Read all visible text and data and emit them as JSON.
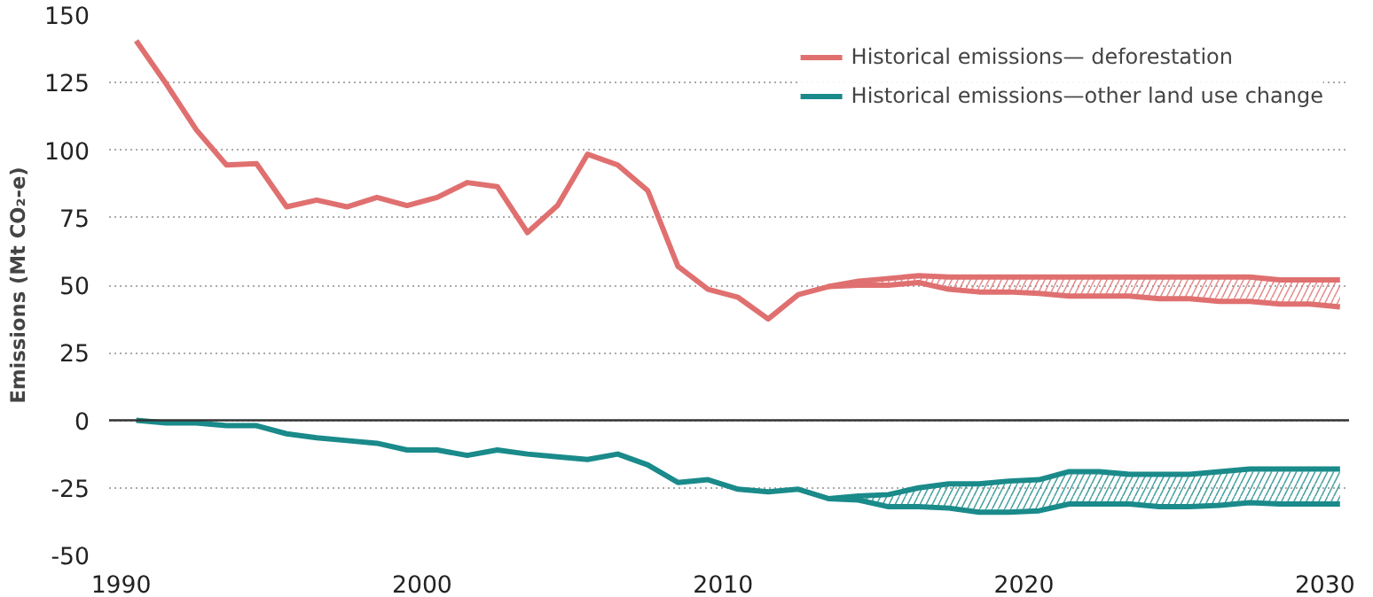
{
  "chart_data": {
    "type": "line",
    "ylabel": "Emissions (Mt CO₂-e)",
    "xlim": [
      1989.6,
      2030.8
    ],
    "ylim": [
      -50,
      150
    ],
    "xticks": [
      1990,
      2000,
      2010,
      2020,
      2030
    ],
    "yticks": [
      -50,
      -25,
      0,
      25,
      50,
      75,
      100,
      125,
      150
    ],
    "grid": "y",
    "legend": "top right",
    "line_style": "solid",
    "marker": "none",
    "ref_lines": [
      {
        "axis": "y",
        "value": 0,
        "color": "#333333"
      }
    ],
    "series": [
      {
        "name": "Historical emissions— deforestation",
        "color": "#e07070",
        "x": [
          1990.5,
          1991.5,
          1992.5,
          1993.5,
          1994.5,
          1995.5,
          1996.5,
          1997.5,
          1998.5,
          1999.5,
          2000.5,
          2001.5,
          2002.5,
          2003.5,
          2004.5,
          2005.5,
          2006.5,
          2007.5,
          2008.5,
          2009.5,
          2010.5,
          2011.5,
          2012.5,
          2013.5,
          2014.5,
          2015.5,
          2016.5,
          2017.5,
          2018.5,
          2019.5,
          2020.5,
          2021.5,
          2022.5,
          2023.5,
          2024.5,
          2025.5,
          2026.5,
          2027.5,
          2028.5,
          2029.5,
          2030.5
        ],
        "values": [
          140.5,
          124.5,
          107.5,
          94.5,
          95,
          79,
          81.5,
          79,
          82.5,
          79.5,
          82.5,
          88,
          86.5,
          69.5,
          79.5,
          98.5,
          94.5,
          85,
          57,
          48.5,
          45.5,
          37.5,
          46.5,
          49.5,
          51.5,
          52.5,
          53.5,
          53,
          53,
          53,
          53,
          53,
          53,
          53,
          53,
          53,
          53,
          53,
          52,
          52,
          52
        ],
        "upper": [
          null,
          null,
          null,
          null,
          null,
          null,
          null,
          null,
          null,
          null,
          null,
          null,
          null,
          null,
          null,
          null,
          null,
          null,
          null,
          null,
          null,
          null,
          null,
          49.5,
          51.5,
          52.5,
          53.5,
          53,
          53,
          53,
          53,
          53,
          53,
          53,
          53,
          53,
          53,
          53,
          52,
          52,
          52
        ],
        "lower": [
          null,
          null,
          null,
          null,
          null,
          null,
          null,
          null,
          null,
          null,
          null,
          null,
          null,
          null,
          null,
          null,
          null,
          null,
          null,
          null,
          null,
          null,
          null,
          49.5,
          50,
          50,
          51,
          48.5,
          47.5,
          47.5,
          47,
          46,
          46,
          46,
          45,
          45,
          44,
          44,
          43,
          43,
          42
        ]
      },
      {
        "name": "Historical emissions—other land use change",
        "color": "#1a8a8a",
        "x": [
          1990.5,
          1991.5,
          1992.5,
          1993.5,
          1994.5,
          1995.5,
          1996.5,
          1997.5,
          1998.5,
          1999.5,
          2000.5,
          2001.5,
          2002.5,
          2003.5,
          2004.5,
          2005.5,
          2006.5,
          2007.5,
          2008.5,
          2009.5,
          2010.5,
          2011.5,
          2012.5,
          2013.5,
          2014.5,
          2015.5,
          2016.5,
          2017.5,
          2018.5,
          2019.5,
          2020.5,
          2021.5,
          2022.5,
          2023.5,
          2024.5,
          2025.5,
          2026.5,
          2027.5,
          2028.5,
          2029.5,
          2030.5
        ],
        "values": [
          0,
          -1,
          -1,
          -2,
          -2,
          -5,
          -6.5,
          -7.5,
          -8.5,
          -11,
          -11,
          -13,
          -11,
          -12.5,
          -13.5,
          -14.5,
          -12.5,
          -16.5,
          -23,
          -22,
          -25.5,
          -26.5,
          -25.5,
          -29,
          -28,
          -27.5,
          -25,
          -23.5,
          -23.5,
          -22.5,
          -22,
          -19,
          -19,
          -20,
          -20,
          -20,
          -19,
          -18,
          -18,
          -18,
          -18
        ],
        "upper": [
          null,
          null,
          null,
          null,
          null,
          null,
          null,
          null,
          null,
          null,
          null,
          null,
          null,
          null,
          null,
          null,
          null,
          null,
          null,
          null,
          null,
          null,
          null,
          -29,
          -28,
          -27.5,
          -25,
          -23.5,
          -23.5,
          -22.5,
          -22,
          -19,
          -19,
          -20,
          -20,
          -20,
          -19,
          -18,
          -18,
          -18,
          -18
        ],
        "lower": [
          null,
          null,
          null,
          null,
          null,
          null,
          null,
          null,
          null,
          null,
          null,
          null,
          null,
          null,
          null,
          null,
          null,
          null,
          null,
          null,
          null,
          null,
          null,
          -29,
          -29.5,
          -32,
          -32,
          -32.5,
          -34,
          -34,
          -33.5,
          -31,
          -31,
          -31,
          -32,
          -32,
          -31.5,
          -30.5,
          -31,
          -31,
          -31
        ]
      },
      {
        "color": "#e07070",
        "x": [
          2013.5,
          2014.5,
          2015.5,
          2016.5,
          2017.5,
          2018.5,
          2019.5,
          2020.5,
          2021.5,
          2022.5,
          2023.5,
          2024.5,
          2025.5,
          2026.5,
          2027.5,
          2028.5,
          2029.5,
          2030.5
        ],
        "values": [
          49.5,
          50,
          50,
          51,
          48.5,
          47.5,
          47.5,
          47,
          46,
          46,
          46,
          45,
          45,
          44,
          44,
          43,
          43,
          42
        ]
      },
      {
        "color": "#1a8a8a",
        "x": [
          2013.5,
          2014.5,
          2015.5,
          2016.5,
          2017.5,
          2018.5,
          2019.5,
          2020.5,
          2021.5,
          2022.5,
          2023.5,
          2024.5,
          2025.5,
          2026.5,
          2027.5,
          2028.5,
          2029.5,
          2030.5
        ],
        "values": [
          -29,
          -29.5,
          -32,
          -32,
          -32.5,
          -34,
          -34,
          -33.5,
          -31,
          -31,
          -31,
          -32,
          -32,
          -31.5,
          -30.5,
          -31,
          -31,
          -31
        ]
      }
    ]
  }
}
